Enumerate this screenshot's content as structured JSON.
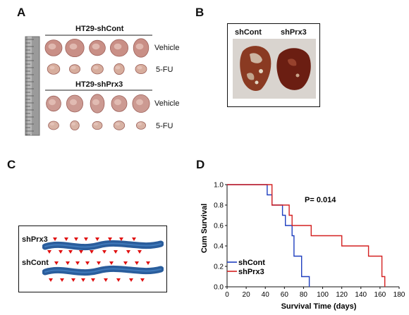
{
  "panels": {
    "A": {
      "letter": "A",
      "group1_title": "HT29-shCont",
      "group2_title": "HT29-shPrx3",
      "row_labels": [
        "Vehicle",
        "5-FU",
        "Vehicle",
        "5-FU"
      ]
    },
    "B": {
      "letter": "B",
      "label_left": "shCont",
      "label_right": "shPrx3"
    },
    "C": {
      "letter": "C",
      "label_top": "shPrx3",
      "label_bottom": "shCont"
    },
    "D": {
      "letter": "D",
      "p_value": "P= 0.014"
    }
  },
  "colors": {
    "shCont": "#1f3fbf",
    "shPrx3": "#d42020",
    "intestine": "#2a5d9c",
    "marker": "#e01010"
  },
  "chart_data": {
    "type": "line",
    "step": true,
    "xlabel": "Survival Time (days)",
    "ylabel": "Cum Survival",
    "xlim": [
      0,
      180
    ],
    "ylim": [
      0.0,
      1.0
    ],
    "x_ticks": [
      "0",
      "20",
      "40",
      "60",
      "80",
      "100",
      "120",
      "140",
      "160",
      "180"
    ],
    "y_ticks": [
      "0.0",
      "0.2",
      "0.4",
      "0.6",
      "0.8",
      "1.0"
    ],
    "legend_position": "bottom-left",
    "series": [
      {
        "name": "shCont",
        "color": "#1f3fbf",
        "points": [
          [
            0,
            1.0
          ],
          [
            42,
            1.0
          ],
          [
            42,
            0.9
          ],
          [
            47,
            0.9
          ],
          [
            47,
            0.8
          ],
          [
            58,
            0.8
          ],
          [
            58,
            0.7
          ],
          [
            61,
            0.7
          ],
          [
            61,
            0.6
          ],
          [
            68,
            0.6
          ],
          [
            68,
            0.5
          ],
          [
            70,
            0.5
          ],
          [
            70,
            0.3
          ],
          [
            78,
            0.3
          ],
          [
            78,
            0.1
          ],
          [
            86,
            0.1
          ],
          [
            86,
            0.0
          ]
        ]
      },
      {
        "name": "shPrx3",
        "color": "#d42020",
        "points": [
          [
            0,
            1.0
          ],
          [
            47,
            1.0
          ],
          [
            47,
            0.8
          ],
          [
            65,
            0.8
          ],
          [
            65,
            0.7
          ],
          [
            68,
            0.7
          ],
          [
            68,
            0.6
          ],
          [
            88,
            0.6
          ],
          [
            88,
            0.5
          ],
          [
            120,
            0.5
          ],
          [
            120,
            0.4
          ],
          [
            148,
            0.4
          ],
          [
            148,
            0.3
          ],
          [
            162,
            0.3
          ],
          [
            162,
            0.1
          ],
          [
            165,
            0.1
          ],
          [
            165,
            0.0
          ]
        ]
      }
    ]
  }
}
